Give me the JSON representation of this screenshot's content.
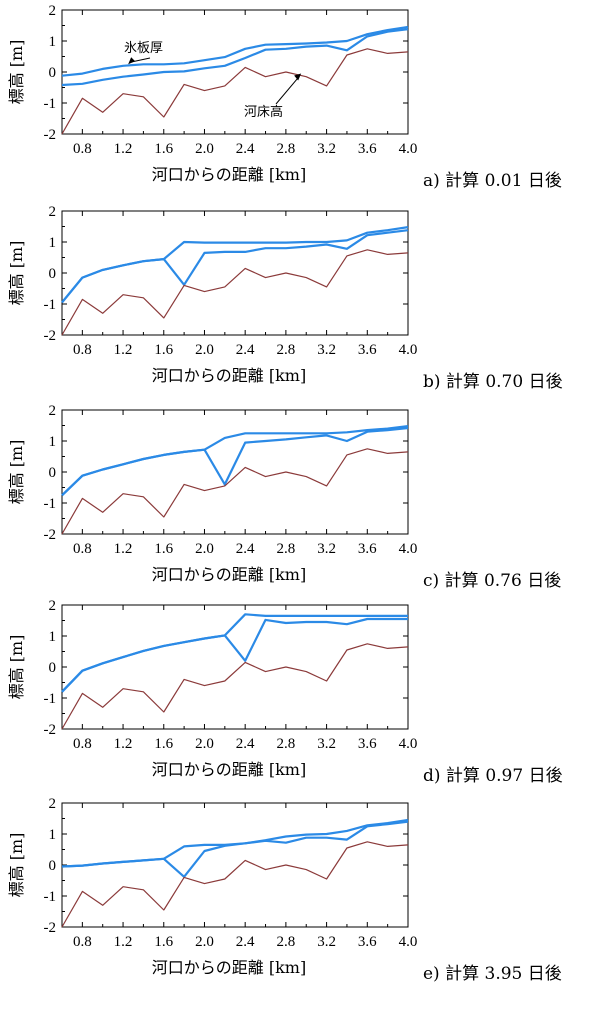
{
  "chart_data": [
    {
      "type": "line",
      "caption": "a) 計算 0.01 日後",
      "xlabel": "河口からの距離 [km]",
      "ylabel": "標高 [m]",
      "xlim": [
        0.6,
        4.0
      ],
      "ylim": [
        -2,
        2
      ],
      "xticks": [
        "0.8",
        "1.2",
        "1.6",
        "2.0",
        "2.4",
        "2.8",
        "3.2",
        "3.6",
        "4.0"
      ],
      "yticks": [
        "-2",
        "-1",
        "0",
        "1",
        "2"
      ],
      "annotations": [
        {
          "text": "氷板厚",
          "arrow_to": [
            1.25,
            0.25
          ]
        },
        {
          "text": "河床高",
          "arrow_to": [
            2.95,
            -0.05
          ]
        }
      ],
      "series": [
        {
          "role": "ice_top",
          "color": "#2b8ae6",
          "x": [
            0.6,
            0.8,
            1.0,
            1.2,
            1.4,
            1.6,
            1.8,
            2.0,
            2.2,
            2.4,
            2.6,
            2.8,
            3.0,
            3.2,
            3.4,
            3.6,
            3.8,
            4.0
          ],
          "y": [
            -0.12,
            -0.05,
            0.1,
            0.2,
            0.25,
            0.25,
            0.28,
            0.38,
            0.48,
            0.75,
            0.88,
            0.9,
            0.92,
            0.95,
            1.0,
            1.22,
            1.35,
            1.45
          ]
        },
        {
          "role": "ice_bottom",
          "color": "#2b8ae6",
          "x": [
            0.6,
            0.8,
            1.0,
            1.2,
            1.4,
            1.6,
            1.8,
            2.0,
            2.2,
            2.4,
            2.6,
            2.8,
            3.0,
            3.2,
            3.4,
            3.6,
            3.8,
            4.0
          ],
          "y": [
            -0.42,
            -0.38,
            -0.25,
            -0.15,
            -0.08,
            0.0,
            0.02,
            0.12,
            0.2,
            0.45,
            0.72,
            0.75,
            0.82,
            0.85,
            0.7,
            1.15,
            1.3,
            1.38
          ]
        },
        {
          "role": "bed",
          "color": "#8b3a3a",
          "x": [
            0.6,
            0.8,
            1.0,
            1.2,
            1.4,
            1.6,
            1.8,
            2.0,
            2.2,
            2.4,
            2.6,
            2.8,
            3.0,
            3.2,
            3.4,
            3.6,
            3.8,
            4.0
          ],
          "y": [
            -2.0,
            -0.85,
            -1.3,
            -0.7,
            -0.8,
            -1.45,
            -0.4,
            -0.6,
            -0.45,
            0.15,
            -0.15,
            0.0,
            -0.15,
            -0.45,
            0.55,
            0.75,
            0.6,
            0.65
          ]
        }
      ]
    },
    {
      "type": "line",
      "caption": "b) 計算 0.70 日後",
      "xlabel": "河口からの距離 [km]",
      "ylabel": "標高 [m]",
      "xlim": [
        0.6,
        4.0
      ],
      "ylim": [
        -2,
        2
      ],
      "xticks": [
        "0.8",
        "1.2",
        "1.6",
        "2.0",
        "2.4",
        "2.8",
        "3.2",
        "3.6",
        "4.0"
      ],
      "yticks": [
        "-2",
        "-1",
        "0",
        "1",
        "2"
      ],
      "annotations": [],
      "series": [
        {
          "role": "ice_top",
          "color": "#2b8ae6",
          "x": [
            0.6,
            0.8,
            1.0,
            1.2,
            1.4,
            1.6,
            1.8,
            2.0,
            2.2,
            2.4,
            2.6,
            2.8,
            3.0,
            3.2,
            3.4,
            3.6,
            3.8,
            4.0
          ],
          "y": [
            -0.95,
            -0.15,
            0.1,
            0.25,
            0.38,
            0.45,
            1.0,
            0.98,
            0.98,
            0.98,
            0.98,
            0.98,
            1.0,
            1.0,
            1.05,
            1.3,
            1.38,
            1.48
          ]
        },
        {
          "role": "ice_bottom",
          "color": "#2b8ae6",
          "x": [
            0.6,
            0.8,
            1.0,
            1.2,
            1.4,
            1.6,
            1.8,
            2.0,
            2.2,
            2.4,
            2.6,
            2.8,
            3.0,
            3.2,
            3.4,
            3.6,
            3.8,
            4.0
          ],
          "y": [
            -0.95,
            -0.15,
            0.1,
            0.25,
            0.38,
            0.45,
            -0.38,
            0.65,
            0.68,
            0.68,
            0.8,
            0.8,
            0.85,
            0.92,
            0.78,
            1.22,
            1.3,
            1.38
          ]
        },
        {
          "role": "bed",
          "color": "#8b3a3a",
          "x": [
            0.6,
            0.8,
            1.0,
            1.2,
            1.4,
            1.6,
            1.8,
            2.0,
            2.2,
            2.4,
            2.6,
            2.8,
            3.0,
            3.2,
            3.4,
            3.6,
            3.8,
            4.0
          ],
          "y": [
            -2.0,
            -0.85,
            -1.3,
            -0.7,
            -0.8,
            -1.45,
            -0.4,
            -0.6,
            -0.45,
            0.15,
            -0.15,
            0.0,
            -0.15,
            -0.45,
            0.55,
            0.75,
            0.6,
            0.65
          ]
        }
      ]
    },
    {
      "type": "line",
      "caption": "c) 計算 0.76 日後",
      "xlabel": "河口からの距離 [km]",
      "ylabel": "標高 [m]",
      "xlim": [
        0.6,
        4.0
      ],
      "ylim": [
        -2,
        2
      ],
      "xticks": [
        "0.8",
        "1.2",
        "1.6",
        "2.0",
        "2.4",
        "2.8",
        "3.2",
        "3.6",
        "4.0"
      ],
      "yticks": [
        "-2",
        "-1",
        "0",
        "1",
        "2"
      ],
      "annotations": [],
      "series": [
        {
          "role": "ice_top",
          "color": "#2b8ae6",
          "x": [
            0.6,
            0.8,
            1.0,
            1.2,
            1.4,
            1.6,
            1.8,
            2.0,
            2.2,
            2.4,
            2.6,
            2.8,
            3.0,
            3.2,
            3.4,
            3.6,
            3.8,
            4.0
          ],
          "y": [
            -0.75,
            -0.12,
            0.08,
            0.25,
            0.42,
            0.55,
            0.65,
            0.72,
            1.1,
            1.25,
            1.25,
            1.25,
            1.25,
            1.25,
            1.28,
            1.35,
            1.4,
            1.48
          ]
        },
        {
          "role": "ice_bottom",
          "color": "#2b8ae6",
          "x": [
            0.6,
            0.8,
            1.0,
            1.2,
            1.4,
            1.6,
            1.8,
            2.0,
            2.2,
            2.4,
            2.6,
            2.8,
            3.0,
            3.2,
            3.4,
            3.6,
            3.8,
            4.0
          ],
          "y": [
            -0.75,
            -0.12,
            0.08,
            0.25,
            0.42,
            0.55,
            0.65,
            0.72,
            -0.4,
            0.95,
            1.0,
            1.05,
            1.12,
            1.18,
            1.0,
            1.3,
            1.35,
            1.42
          ]
        },
        {
          "role": "bed",
          "color": "#8b3a3a",
          "x": [
            0.6,
            0.8,
            1.0,
            1.2,
            1.4,
            1.6,
            1.8,
            2.0,
            2.2,
            2.4,
            2.6,
            2.8,
            3.0,
            3.2,
            3.4,
            3.6,
            3.8,
            4.0
          ],
          "y": [
            -2.0,
            -0.85,
            -1.3,
            -0.7,
            -0.8,
            -1.45,
            -0.4,
            -0.6,
            -0.45,
            0.15,
            -0.15,
            0.0,
            -0.15,
            -0.45,
            0.55,
            0.75,
            0.6,
            0.65
          ]
        }
      ]
    },
    {
      "type": "line",
      "caption": "d) 計算 0.97 日後",
      "xlabel": "河口からの距離 [km]",
      "ylabel": "標高 [m]",
      "xlim": [
        0.6,
        4.0
      ],
      "ylim": [
        -2,
        2
      ],
      "xticks": [
        "0.8",
        "1.2",
        "1.6",
        "2.0",
        "2.4",
        "2.8",
        "3.2",
        "3.6",
        "4.0"
      ],
      "yticks": [
        "-2",
        "-1",
        "0",
        "1",
        "2"
      ],
      "annotations": [],
      "series": [
        {
          "role": "ice_top",
          "color": "#2b8ae6",
          "x": [
            0.6,
            0.8,
            1.0,
            1.2,
            1.4,
            1.6,
            1.8,
            2.0,
            2.2,
            2.4,
            2.6,
            2.8,
            3.0,
            3.2,
            3.4,
            3.6,
            3.8,
            4.0
          ],
          "y": [
            -0.8,
            -0.12,
            0.12,
            0.32,
            0.52,
            0.68,
            0.8,
            0.92,
            1.02,
            1.7,
            1.65,
            1.65,
            1.65,
            1.65,
            1.65,
            1.65,
            1.65,
            1.65
          ]
        },
        {
          "role": "ice_bottom",
          "color": "#2b8ae6",
          "x": [
            0.6,
            0.8,
            1.0,
            1.2,
            1.4,
            1.6,
            1.8,
            2.0,
            2.2,
            2.4,
            2.6,
            2.8,
            3.0,
            3.2,
            3.4,
            3.6,
            3.8,
            4.0
          ],
          "y": [
            -0.8,
            -0.12,
            0.12,
            0.32,
            0.52,
            0.68,
            0.8,
            0.92,
            1.02,
            0.2,
            1.52,
            1.42,
            1.45,
            1.45,
            1.38,
            1.55,
            1.55,
            1.55
          ]
        },
        {
          "role": "bed",
          "color": "#8b3a3a",
          "x": [
            0.6,
            0.8,
            1.0,
            1.2,
            1.4,
            1.6,
            1.8,
            2.0,
            2.2,
            2.4,
            2.6,
            2.8,
            3.0,
            3.2,
            3.4,
            3.6,
            3.8,
            4.0
          ],
          "y": [
            -2.0,
            -0.85,
            -1.3,
            -0.7,
            -0.8,
            -1.45,
            -0.4,
            -0.6,
            -0.45,
            0.15,
            -0.15,
            0.0,
            -0.15,
            -0.45,
            0.55,
            0.75,
            0.6,
            0.65
          ]
        }
      ]
    },
    {
      "type": "line",
      "caption": "e) 計算 3.95 日後",
      "xlabel": "河口からの距離 [km]",
      "ylabel": "標高 [m]",
      "xlim": [
        0.6,
        4.0
      ],
      "ylim": [
        -2,
        2
      ],
      "xticks": [
        "0.8",
        "1.2",
        "1.6",
        "2.0",
        "2.4",
        "2.8",
        "3.2",
        "3.6",
        "4.0"
      ],
      "yticks": [
        "-2",
        "-1",
        "0",
        "1",
        "2"
      ],
      "annotations": [],
      "series": [
        {
          "role": "ice_top",
          "color": "#2b8ae6",
          "x": [
            0.6,
            0.8,
            1.0,
            1.2,
            1.4,
            1.6,
            1.8,
            2.0,
            2.2,
            2.4,
            2.6,
            2.8,
            3.0,
            3.2,
            3.4,
            3.6,
            3.8,
            4.0
          ],
          "y": [
            -0.05,
            -0.02,
            0.05,
            0.1,
            0.15,
            0.2,
            0.6,
            0.65,
            0.65,
            0.7,
            0.8,
            0.92,
            0.98,
            1.0,
            1.1,
            1.28,
            1.35,
            1.45
          ]
        },
        {
          "role": "ice_bottom",
          "color": "#2b8ae6",
          "x": [
            0.6,
            0.8,
            1.0,
            1.2,
            1.4,
            1.6,
            1.8,
            2.0,
            2.2,
            2.4,
            2.6,
            2.8,
            3.0,
            3.2,
            3.4,
            3.6,
            3.8,
            4.0
          ],
          "y": [
            -0.05,
            -0.02,
            0.05,
            0.1,
            0.15,
            0.2,
            -0.38,
            0.45,
            0.62,
            0.7,
            0.78,
            0.72,
            0.88,
            0.88,
            0.82,
            1.25,
            1.32,
            1.4
          ]
        },
        {
          "role": "bed",
          "color": "#8b3a3a",
          "x": [
            0.6,
            0.8,
            1.0,
            1.2,
            1.4,
            1.6,
            1.8,
            2.0,
            2.2,
            2.4,
            2.6,
            2.8,
            3.0,
            3.2,
            3.4,
            3.6,
            3.8,
            4.0
          ],
          "y": [
            -2.0,
            -0.85,
            -1.3,
            -0.7,
            -0.8,
            -1.45,
            -0.4,
            -0.6,
            -0.45,
            0.15,
            -0.15,
            0.0,
            -0.15,
            -0.45,
            0.55,
            0.75,
            0.6,
            0.65
          ]
        }
      ]
    }
  ]
}
